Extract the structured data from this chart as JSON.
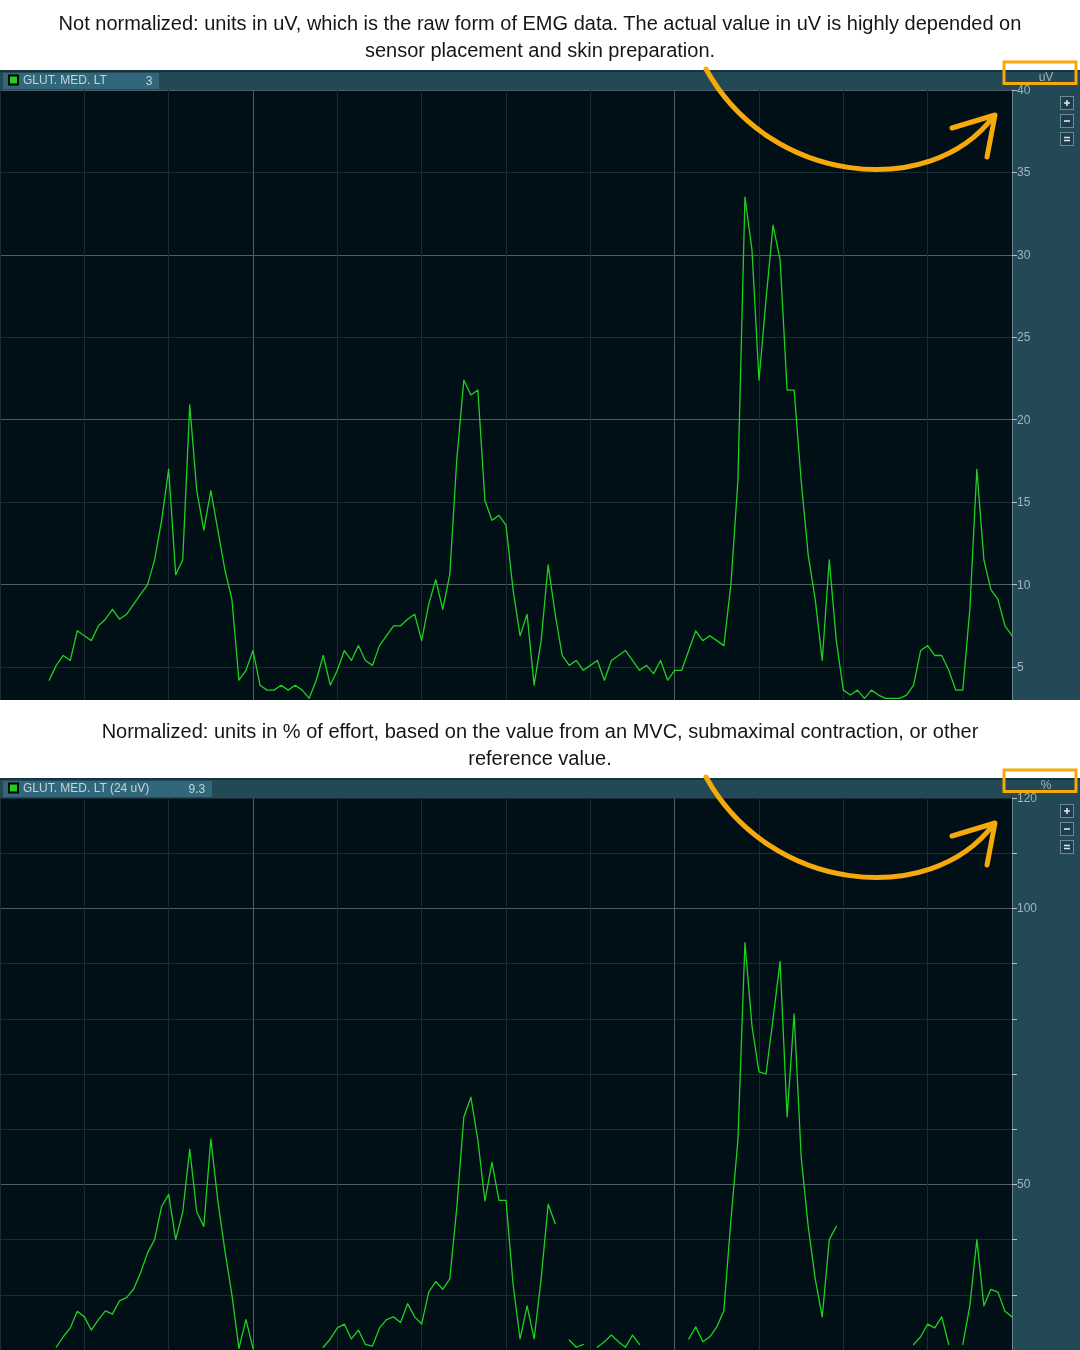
{
  "chart_data": [
    {
      "type": "line",
      "title": "Not normalized: units in uV, which is the raw form of EMG data. The actual value in uV is highly depended on sensor placement and skin preparation.",
      "ylabel": "uV",
      "annotations": [
        "3"
      ],
      "categories": [
        null,
        null,
        null,
        null,
        null,
        null,
        null,
        null,
        null,
        null,
        null,
        null,
        null,
        null,
        null,
        null,
        null,
        null,
        null,
        null,
        null,
        null,
        null,
        null,
        null,
        null,
        null,
        null,
        null,
        null,
        null,
        null,
        null,
        null,
        null,
        null,
        null,
        null,
        null,
        null,
        null,
        null,
        null,
        null,
        null,
        null,
        null,
        null,
        null,
        null,
        null,
        null,
        null,
        null,
        null,
        null,
        null,
        null,
        null,
        null,
        null,
        null,
        null,
        null,
        null,
        null,
        null,
        null,
        null,
        null,
        null,
        null,
        null,
        null,
        null,
        null,
        null,
        null,
        null,
        null,
        null,
        null,
        null,
        null,
        null,
        null,
        null,
        null,
        null,
        null,
        null,
        null,
        null,
        null,
        null,
        null,
        null,
        null,
        null,
        null,
        null,
        null,
        null,
        null,
        null,
        null,
        null,
        null,
        null,
        null,
        null,
        null,
        null,
        null,
        null,
        null,
        null,
        null,
        null,
        null,
        null,
        null,
        null,
        null,
        null,
        null,
        null,
        null,
        null,
        null,
        null,
        null,
        null,
        null,
        null,
        null,
        null,
        null,
        null,
        null,
        null,
        null,
        null,
        null,
        null
      ],
      "series": [
        {
          "name": "GLUT. MED. LT",
          "color": "#1fd11f",
          "values": [
            null,
            null,
            null,
            null,
            null,
            null,
            null,
            4.2,
            5.1,
            5.7,
            5.4,
            7.2,
            6.9,
            6.6,
            7.5,
            7.9,
            8.5,
            7.9,
            8.2,
            8.8,
            9.4,
            10.0,
            11.5,
            13.9,
            17.0,
            10.6,
            11.5,
            20.9,
            15.7,
            13.3,
            15.7,
            13.3,
            10.9,
            9.1,
            4.2,
            4.8,
            6.0,
            3.9,
            3.6,
            3.6,
            3.9,
            3.6,
            3.9,
            3.6,
            3.1,
            4.2,
            5.7,
            3.9,
            4.8,
            6.0,
            5.4,
            6.3,
            5.4,
            5.1,
            6.3,
            6.9,
            7.5,
            7.5,
            7.9,
            8.2,
            6.6,
            8.8,
            10.3,
            8.5,
            10.6,
            17.6,
            22.4,
            21.5,
            21.8,
            15.1,
            13.9,
            14.2,
            13.6,
            9.7,
            6.9,
            8.2,
            3.9,
            6.6,
            11.2,
            8.2,
            5.7,
            5.1,
            5.4,
            4.8,
            5.1,
            5.4,
            4.2,
            5.4,
            5.7,
            6.0,
            5.4,
            4.8,
            5.1,
            4.6,
            5.4,
            4.2,
            4.8,
            4.8,
            6.0,
            7.2,
            6.6,
            6.9,
            6.6,
            6.3,
            10.0,
            16.3,
            33.5,
            30.3,
            22.4,
            27.3,
            31.8,
            29.7,
            21.8,
            21.8,
            16.3,
            11.8,
            9.1,
            5.4,
            11.5,
            6.6,
            3.6,
            3.3,
            3.6,
            3.1,
            3.6,
            3.3,
            3.1,
            3.1,
            3.1,
            3.3,
            3.9,
            6.0,
            6.3,
            5.7,
            5.7,
            4.8,
            3.6,
            3.6,
            8.5,
            17.0,
            11.5,
            9.7,
            9.1,
            7.5,
            6.9
          ]
        }
      ],
      "ylim": [
        3,
        40
      ],
      "yticks": [
        5,
        10,
        15,
        20,
        25,
        30,
        35,
        40
      ],
      "grid": true,
      "legend": "top left",
      "tick_labels": "y"
    },
    {
      "type": "line",
      "title": "Normalized: units in % of effort, based on the value from an MVC, submaximal contraction, or other reference value.",
      "ylabel": "%",
      "annotations": [
        "9.3"
      ],
      "categories": [
        null,
        null,
        null,
        null,
        null,
        null,
        null,
        null,
        null,
        null,
        null,
        null,
        null,
        null,
        null,
        null,
        null,
        null,
        null,
        null,
        null,
        null,
        null,
        null,
        null,
        null,
        null,
        null,
        null,
        null,
        null,
        null,
        null,
        null,
        null,
        null,
        null,
        null,
        null,
        null,
        null,
        null,
        null,
        null,
        null,
        null,
        null,
        null,
        null,
        null,
        null,
        null,
        null,
        null,
        null,
        null,
        null,
        null,
        null,
        null,
        null,
        null,
        null,
        null,
        null,
        null,
        null,
        null,
        null,
        null,
        null,
        null,
        null,
        null,
        null,
        null,
        null,
        null,
        null,
        null,
        null,
        null,
        null,
        null,
        null,
        null,
        null,
        null,
        null,
        null,
        null,
        null,
        null,
        null,
        null,
        null,
        null,
        null,
        null,
        null,
        null,
        null,
        null,
        null,
        null,
        null,
        null,
        null,
        null,
        null,
        null,
        null,
        null,
        null,
        null,
        null,
        null,
        null,
        null,
        null,
        null,
        null,
        null,
        null,
        null,
        null,
        null,
        null,
        null,
        null,
        null,
        null,
        null,
        null,
        null,
        null,
        null,
        null,
        null,
        null,
        null,
        null,
        null,
        null,
        null
      ],
      "series": [
        {
          "name": "GLUT. MED. LT (24 uV)",
          "color": "#1fd11f",
          "values": [
            null,
            null,
            null,
            null,
            null,
            null,
            null,
            null,
            20.5,
            22.4,
            24.0,
            27.0,
            26.0,
            23.6,
            25.5,
            27.1,
            26.5,
            28.9,
            29.5,
            31.0,
            34.0,
            37.6,
            40.0,
            46.0,
            48.2,
            40.0,
            45.0,
            56.4,
            45.0,
            42.4,
            58.2,
            47.0,
            38.0,
            30.0,
            20.3,
            25.5,
            20.3,
            null,
            null,
            null,
            null,
            null,
            null,
            null,
            null,
            null,
            20.5,
            22.0,
            24.0,
            24.7,
            22.0,
            23.6,
            21.0,
            20.7,
            24.0,
            25.5,
            26.0,
            25.0,
            28.4,
            26.0,
            24.7,
            30.5,
            32.4,
            31.0,
            32.9,
            45.8,
            62.2,
            65.8,
            58.0,
            47.0,
            54.0,
            47.1,
            47.1,
            32.0,
            22.0,
            28.0,
            22.0,
            32.9,
            46.4,
            42.9,
            null,
            21.8,
            20.5,
            21.0,
            null,
            20.5,
            21.5,
            22.7,
            21.5,
            20.5,
            22.7,
            21.0,
            null,
            null,
            null,
            null,
            null,
            null,
            22.0,
            24.2,
            21.5,
            22.4,
            24.2,
            27.1,
            43.5,
            58.0,
            93.8,
            78.7,
            70.4,
            70.0,
            80.0,
            90.4,
            62.2,
            80.9,
            55.0,
            42.4,
            32.9,
            26.0,
            40.0,
            42.4,
            null,
            null,
            null,
            null,
            null,
            null,
            null,
            null,
            null,
            null,
            21.0,
            22.4,
            24.7,
            24.0,
            26.0,
            21.0,
            null,
            21.0,
            28.0,
            40.0,
            28.0,
            31.0,
            30.5,
            27.0,
            26.0
          ]
        }
      ],
      "ylim": [
        20,
        120
      ],
      "yticks": [
        {
          "value": 30,
          "label": null
        },
        {
          "value": 40,
          "label": null
        },
        50,
        {
          "value": 60,
          "label": null
        },
        {
          "value": 70,
          "label": null
        },
        {
          "value": 80,
          "label": null
        },
        {
          "value": 90,
          "label": null
        },
        100,
        {
          "value": 110,
          "label": null
        },
        120
      ],
      "grid": true,
      "legend": "top left",
      "tick_labels": "y"
    }
  ]
}
